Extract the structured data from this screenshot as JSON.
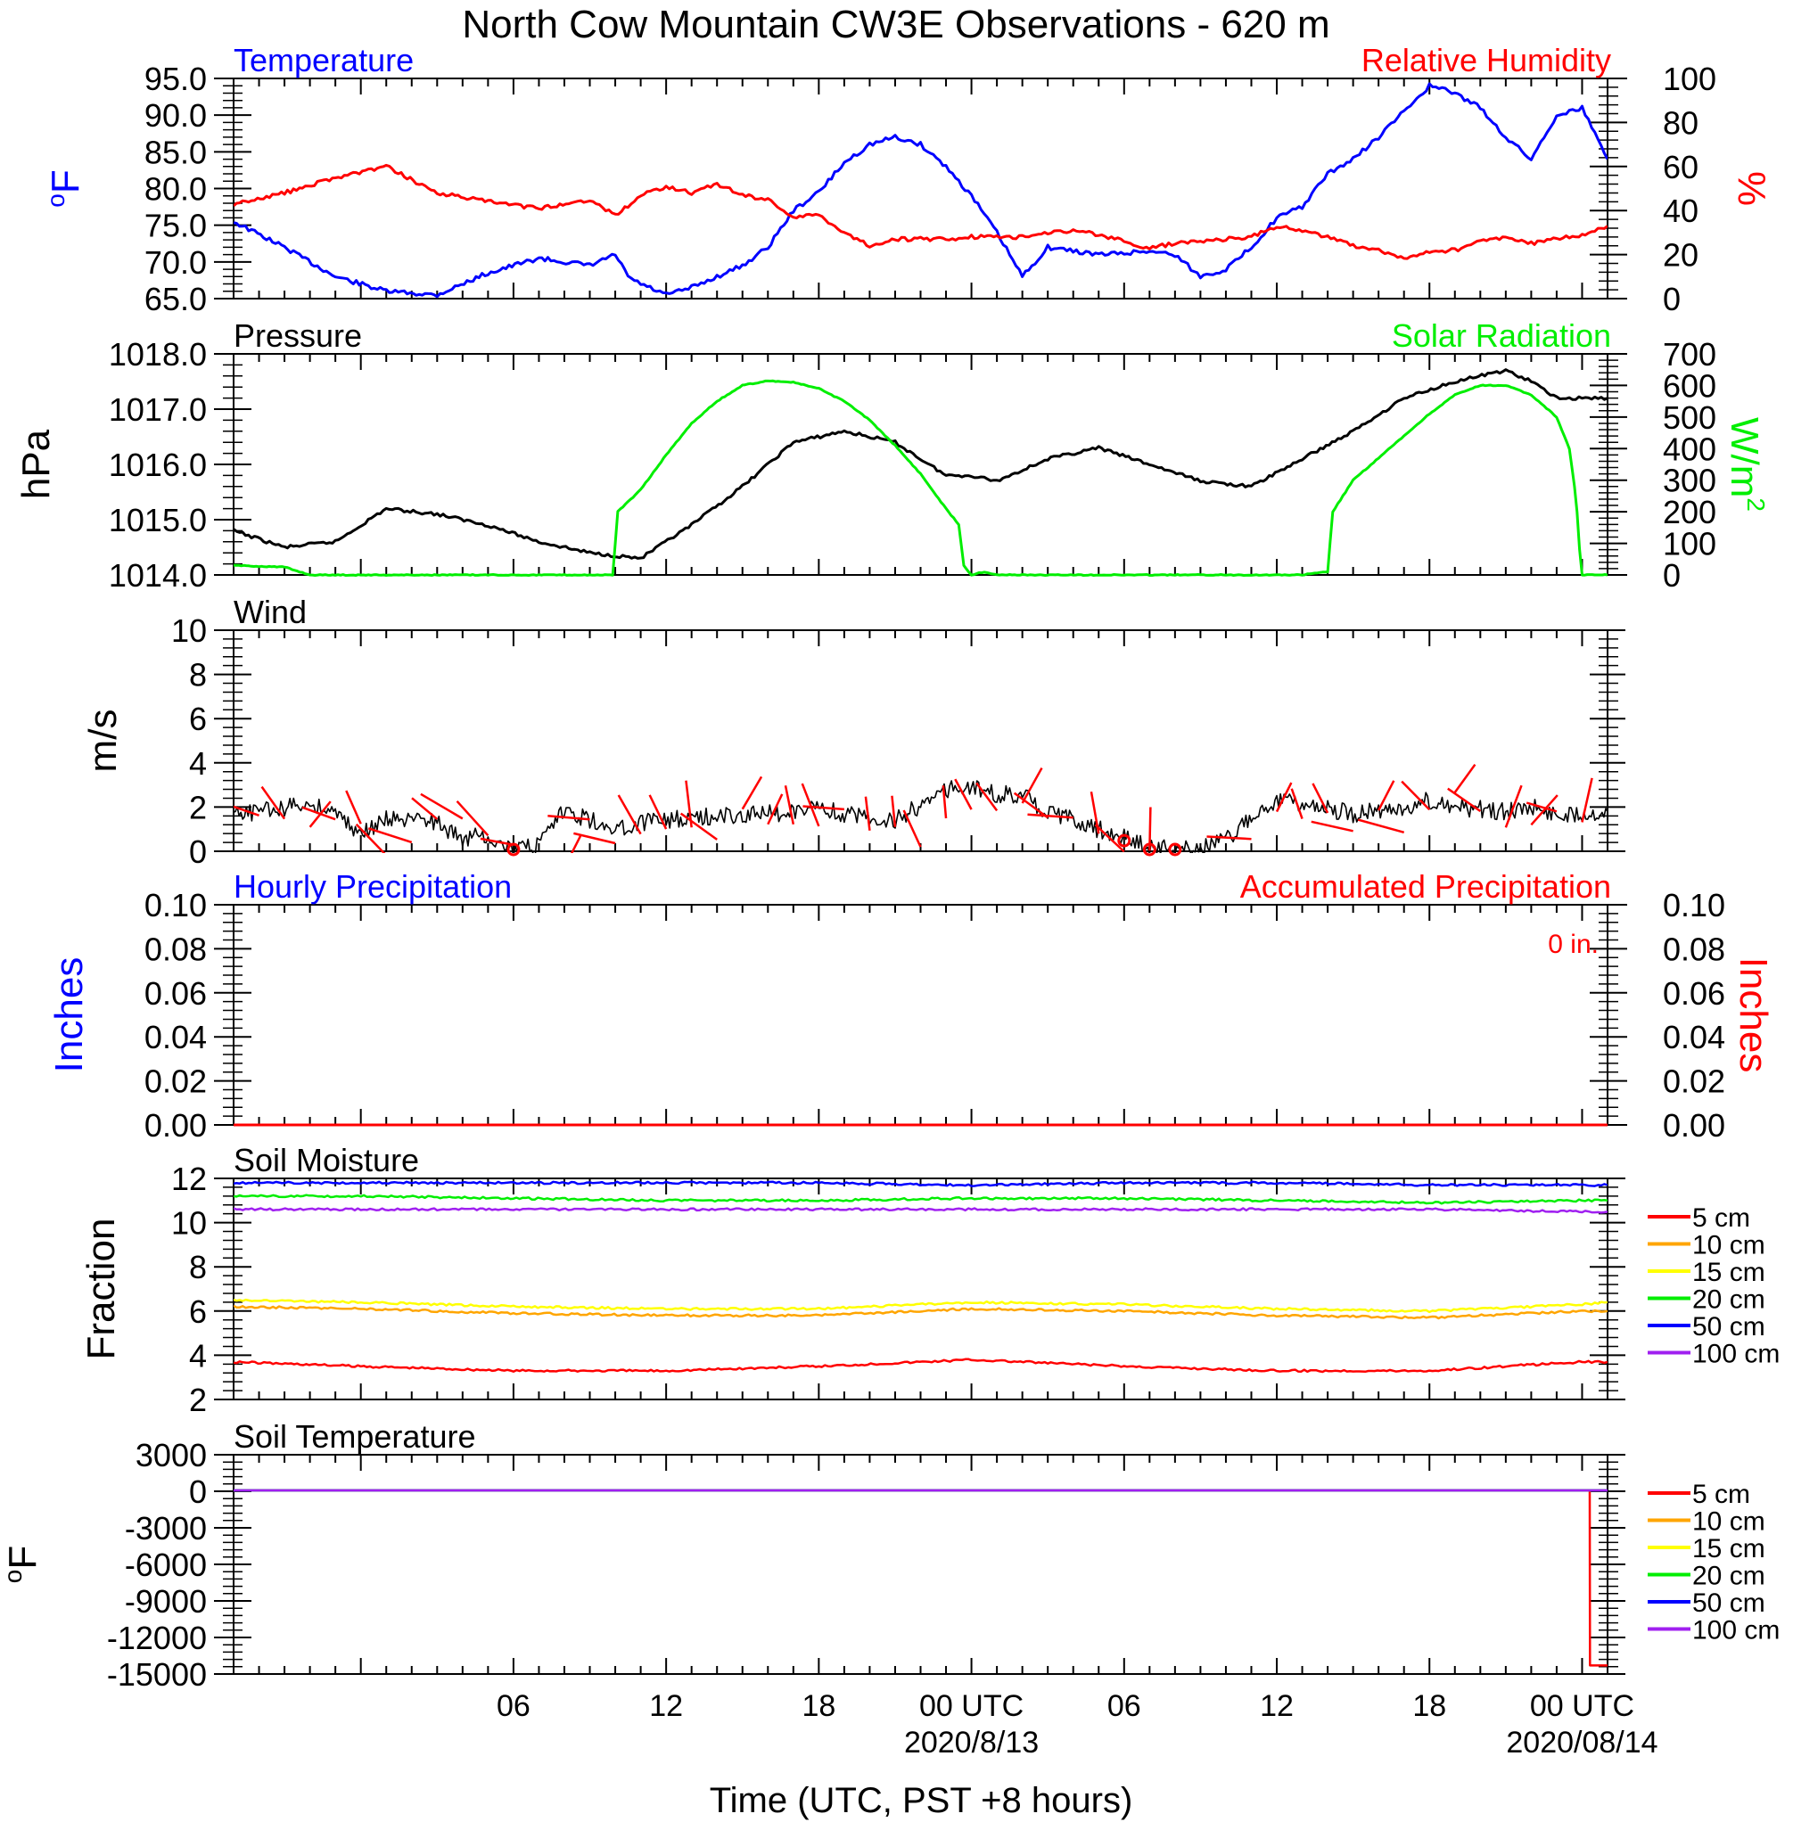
{
  "title": "North Cow Mountain CW3E Observations - 620 m",
  "xlabel": "Time (UTC, PST +8 hours)",
  "time_ticks": [
    {
      "h": 6,
      "label": "06",
      "date": ""
    },
    {
      "h": 12,
      "label": "12",
      "date": ""
    },
    {
      "h": 18,
      "label": "18",
      "date": ""
    },
    {
      "h": 24,
      "label": "00 UTC",
      "date": "2020/8/13"
    },
    {
      "h": 30,
      "label": "06",
      "date": ""
    },
    {
      "h": 36,
      "label": "12",
      "date": ""
    },
    {
      "h": 42,
      "label": "18",
      "date": ""
    },
    {
      "h": 48,
      "label": "00 UTC",
      "date": "2020/08/14"
    }
  ],
  "colors": {
    "blue": "#0000ff",
    "red": "#ff0000",
    "green": "#00ee00",
    "black": "#000000",
    "orange": "#ffa500",
    "yellow": "#ffff00",
    "purple": "#a020f0"
  },
  "panels": {
    "temp_rh": {
      "left_title": "Temperature",
      "right_title": "Relative Humidity",
      "left_unit": "oF",
      "right_unit": "%",
      "left_ticks": [
        "95.0",
        "90.0",
        "85.0",
        "80.0",
        "75.0",
        "70.0",
        "65.0"
      ],
      "right_ticks": [
        "100",
        "80",
        "60",
        "40",
        "20",
        "0"
      ]
    },
    "pressure_solar": {
      "left_title": "Pressure",
      "right_title": "Solar Radiation",
      "left_unit": "hPa",
      "right_unit": "W/m2",
      "left_ticks": [
        "1018.0",
        "1017.0",
        "1016.0",
        "1015.0",
        "1014.0"
      ],
      "right_ticks": [
        "700",
        "600",
        "500",
        "400",
        "300",
        "200",
        "100",
        "0"
      ]
    },
    "wind": {
      "left_title": "Wind",
      "left_unit": "m/s",
      "left_ticks": [
        "10",
        "8",
        "6",
        "4",
        "2",
        "0"
      ]
    },
    "precip": {
      "left_title": "Hourly Precipitation",
      "right_title": "Accumulated Precipitation",
      "left_unit": "Inches",
      "right_unit": "Inches",
      "total_label": "0 in.",
      "left_ticks": [
        "0.10",
        "0.08",
        "0.06",
        "0.04",
        "0.02",
        "0.00"
      ],
      "right_ticks": [
        "0.10",
        "0.08",
        "0.06",
        "0.04",
        "0.02",
        "0.00"
      ]
    },
    "soil_moisture": {
      "left_title": "Soil Moisture",
      "left_unit": "Fraction",
      "left_ticks": [
        "12",
        "10",
        "8",
        "6",
        "4",
        "2"
      ],
      "legend": [
        "5 cm",
        "10 cm",
        "15 cm",
        "20 cm",
        "50 cm",
        "100 cm"
      ]
    },
    "soil_temp": {
      "left_title": "Soil Temperature",
      "left_unit": "oF",
      "left_ticks": [
        "3000",
        "0",
        "-3000",
        "-6000",
        "-9000",
        "-12000",
        "-15000"
      ],
      "legend": [
        "5 cm",
        "10 cm",
        "15 cm",
        "20 cm",
        "50 cm",
        "100 cm"
      ]
    }
  },
  "chart_data": [
    {
      "type": "line",
      "title": "Temperature / Relative Humidity",
      "x_units": "hours since 2020-08-12 00 UTC",
      "xlim": [
        -5,
        49
      ],
      "series": [
        {
          "name": "Temperature",
          "axis": "left",
          "unit": "°F",
          "ylim": [
            65,
            95
          ],
          "color": "#0000ff",
          "x": [
            -5,
            -3,
            -1,
            1,
            3,
            5,
            7,
            9,
            10,
            10.5,
            11,
            12,
            13,
            14,
            15,
            16,
            17,
            18,
            19,
            20,
            21,
            22,
            23,
            24,
            25,
            26,
            27,
            28,
            29,
            30,
            31,
            32,
            33,
            34,
            35,
            36,
            37,
            38,
            39,
            40,
            41,
            42,
            43,
            44,
            45,
            46,
            47,
            48,
            49
          ],
          "y": [
            75.5,
            72,
            68,
            66,
            65.5,
            68.5,
            70.5,
            69.5,
            71,
            68,
            67,
            65.5,
            66.5,
            68,
            69.5,
            72,
            77,
            79.5,
            83.5,
            86,
            87,
            86,
            83,
            79,
            74,
            68,
            72,
            71.5,
            71,
            71.2,
            71.5,
            71,
            68,
            69,
            72,
            76,
            77.5,
            82,
            84,
            87,
            90.5,
            94,
            93,
            91,
            87,
            84,
            90,
            91,
            84
          ]
        },
        {
          "name": "Relative Humidity",
          "axis": "right",
          "unit": "%",
          "ylim": [
            0,
            100
          ],
          "color": "#ff0000",
          "x": [
            -5,
            -3,
            -1,
            1,
            3,
            5,
            7,
            9,
            10,
            10.5,
            11,
            12,
            13,
            14,
            15,
            16,
            17,
            18,
            19,
            20,
            21,
            22,
            23,
            24,
            25,
            26,
            27,
            28,
            29,
            30,
            31,
            32,
            33,
            34,
            35,
            36,
            37,
            38,
            39,
            40,
            41,
            42,
            43,
            44,
            45,
            46,
            47,
            48,
            49
          ],
          "y": [
            43,
            48,
            55,
            60,
            48,
            44,
            41,
            45,
            38,
            42,
            47,
            51,
            48,
            52,
            47,
            45,
            37,
            38,
            30,
            24,
            27,
            27,
            27,
            28,
            28,
            28,
            30,
            31,
            29,
            26,
            23,
            25,
            26,
            27,
            28,
            33,
            31,
            28,
            24,
            22,
            18,
            21,
            22,
            26,
            28,
            25,
            27,
            29,
            33
          ]
        }
      ]
    },
    {
      "type": "line",
      "title": "Pressure / Solar Radiation",
      "x_units": "hours since 2020-08-12 00 UTC",
      "xlim": [
        -5,
        49
      ],
      "series": [
        {
          "name": "Pressure",
          "axis": "left",
          "unit": "hPa",
          "ylim": [
            1014,
            1018
          ],
          "color": "#000000",
          "x": [
            -5,
            -3,
            -1,
            1,
            3,
            5,
            7,
            9,
            11,
            13,
            15,
            17,
            19,
            21,
            23,
            24,
            25,
            27,
            29,
            31,
            33,
            35,
            37,
            39,
            41,
            43,
            45,
            46,
            47,
            48,
            49
          ],
          "y": [
            1014.8,
            1014.5,
            1014.6,
            1015.2,
            1015.1,
            1014.9,
            1014.6,
            1014.4,
            1014.3,
            1014.9,
            1015.6,
            1016.4,
            1016.6,
            1016.4,
            1015.8,
            1015.8,
            1015.7,
            1016.1,
            1016.3,
            1016.0,
            1015.7,
            1015.6,
            1016.1,
            1016.6,
            1017.2,
            1017.5,
            1017.7,
            1017.5,
            1017.2,
            1017.2,
            1017.2
          ]
        },
        {
          "name": "Solar Radiation",
          "axis": "right",
          "unit": "W/m2",
          "ylim": [
            0,
            700
          ],
          "color": "#00ee00",
          "x": [
            -5,
            -3,
            -2,
            8,
            9.9,
            10.1,
            11,
            12,
            13,
            14,
            15,
            16,
            17,
            18,
            19,
            20,
            21,
            22,
            23,
            23.5,
            23.7,
            24,
            24.5,
            25,
            26,
            37,
            38,
            38.2,
            39,
            40,
            41,
            42,
            43,
            44,
            45,
            46,
            47,
            47.5,
            47.7,
            47.8,
            47.9,
            48,
            48.4,
            49
          ],
          "y": [
            30,
            25,
            0,
            0,
            0,
            200,
            270,
            380,
            480,
            550,
            600,
            615,
            610,
            590,
            550,
            490,
            410,
            320,
            210,
            160,
            30,
            0,
            10,
            0,
            0,
            0,
            10,
            200,
            300,
            370,
            440,
            510,
            570,
            600,
            600,
            570,
            500,
            400,
            280,
            200,
            80,
            0,
            0,
            0
          ]
        }
      ]
    },
    {
      "type": "line",
      "title": "Wind",
      "x_units": "hours since 2020-08-12 00 UTC",
      "xlim": [
        -5,
        49
      ],
      "series": [
        {
          "name": "Wind",
          "axis": "left",
          "unit": "m/s",
          "ylim": [
            0,
            10
          ],
          "color": "#000000",
          "x": [
            -5,
            -4,
            -3,
            -2,
            -1,
            0,
            1,
            2,
            3,
            4,
            5,
            6,
            7,
            8,
            9,
            10,
            11,
            12,
            13,
            14,
            15,
            16,
            17,
            18,
            19,
            20,
            21,
            22,
            23,
            24,
            25,
            26,
            27,
            28,
            29,
            30,
            31,
            32,
            33,
            34,
            35,
            36,
            37,
            38,
            39,
            40,
            41,
            42,
            43,
            44,
            45,
            46,
            47,
            48,
            49
          ],
          "y": [
            1.6,
            1.8,
            2.0,
            2.2,
            1.8,
            0.8,
            1.5,
            1.4,
            1.3,
            0.5,
            0.8,
            0.1,
            0.3,
            1.9,
            1.4,
            1.0,
            1.3,
            1.4,
            1.5,
            1.6,
            1.6,
            1.7,
            1.8,
            1.9,
            1.7,
            1.5,
            1.4,
            2.1,
            2.8,
            3.0,
            2.6,
            2.5,
            1.8,
            1.4,
            1.0,
            0.6,
            0.2,
            0.1,
            0.1,
            0.5,
            1.6,
            2.3,
            2.2,
            1.9,
            1.7,
            1.8,
            2.0,
            2.3,
            2.0,
            1.9,
            1.8,
            2.0,
            1.6,
            1.7,
            1.8
          ]
        },
        {
          "name": "calm",
          "axis": "left",
          "unit": "m/s",
          "color": "#ff0000",
          "x": [
            6,
            30,
            31,
            32
          ],
          "y": [
            0.0,
            0.4,
            0.0,
            0.0
          ]
        }
      ]
    },
    {
      "type": "line",
      "title": "Hourly / Accumulated Precipitation",
      "x_units": "hours since 2020-08-12 00 UTC",
      "xlim": [
        -5,
        49
      ],
      "series": [
        {
          "name": "Hourly Precipitation",
          "axis": "left",
          "unit": "in",
          "ylim": [
            0,
            0.1
          ],
          "color": "#0000ff",
          "x": [
            -5,
            49
          ],
          "y": [
            0,
            0
          ]
        },
        {
          "name": "Accumulated Precipitation",
          "axis": "right",
          "unit": "in",
          "ylim": [
            0,
            0.1
          ],
          "color": "#ff0000",
          "x": [
            -5,
            49
          ],
          "y": [
            0,
            0
          ]
        }
      ]
    },
    {
      "type": "line",
      "title": "Soil Moisture",
      "x_units": "hours since 2020-08-12 00 UTC",
      "xlim": [
        -5,
        49
      ],
      "ylim": [
        2,
        12
      ],
      "series": [
        {
          "name": "5 cm",
          "color": "#ff0000",
          "x": [
            -5,
            0,
            6,
            12,
            18,
            24,
            30,
            36,
            42,
            48,
            49
          ],
          "y": [
            3.7,
            3.5,
            3.3,
            3.3,
            3.5,
            3.8,
            3.5,
            3.3,
            3.3,
            3.7,
            3.7
          ]
        },
        {
          "name": "10 cm",
          "color": "#ffa500",
          "x": [
            -5,
            0,
            6,
            12,
            18,
            24,
            30,
            36,
            42,
            48,
            49
          ],
          "y": [
            6.2,
            6.1,
            5.9,
            5.8,
            5.8,
            6.1,
            6.0,
            5.8,
            5.7,
            6.0,
            6.0
          ]
        },
        {
          "name": "15 cm",
          "color": "#ffff00",
          "x": [
            -5,
            0,
            6,
            12,
            18,
            24,
            30,
            36,
            42,
            48,
            49
          ],
          "y": [
            6.5,
            6.4,
            6.2,
            6.1,
            6.1,
            6.4,
            6.3,
            6.1,
            6.0,
            6.3,
            6.4
          ]
        },
        {
          "name": "20 cm",
          "color": "#00ee00",
          "x": [
            -5,
            0,
            6,
            12,
            18,
            24,
            30,
            36,
            42,
            48,
            49
          ],
          "y": [
            11.2,
            11.2,
            11.1,
            11.0,
            11.0,
            11.1,
            11.1,
            11.0,
            10.9,
            11.0,
            11.0
          ]
        },
        {
          "name": "50 cm",
          "color": "#0000ff",
          "x": [
            -5,
            0,
            6,
            12,
            18,
            24,
            30,
            36,
            42,
            48,
            49
          ],
          "y": [
            11.8,
            11.8,
            11.8,
            11.8,
            11.8,
            11.7,
            11.8,
            11.8,
            11.7,
            11.7,
            11.7
          ]
        },
        {
          "name": "100 cm",
          "color": "#a020f0",
          "x": [
            -5,
            0,
            6,
            12,
            18,
            24,
            30,
            36,
            42,
            48,
            49
          ],
          "y": [
            10.6,
            10.6,
            10.6,
            10.6,
            10.6,
            10.6,
            10.6,
            10.6,
            10.6,
            10.5,
            10.5
          ]
        }
      ]
    },
    {
      "type": "line",
      "title": "Soil Temperature",
      "x_units": "hours since 2020-08-12 00 UTC",
      "xlim": [
        -5,
        49
      ],
      "ylim": [
        -15000,
        3000
      ],
      "series": [
        {
          "name": "5 cm",
          "color": "#ff0000",
          "x": [
            -5,
            48.3,
            48.31,
            49
          ],
          "y": [
            75,
            75,
            -14300,
            -14300
          ]
        },
        {
          "name": "10 cm",
          "color": "#ffa500",
          "x": [
            -5,
            49
          ],
          "y": [
            74,
            74
          ]
        },
        {
          "name": "15 cm",
          "color": "#ffff00",
          "x": [
            -5,
            49
          ],
          "y": [
            73,
            73
          ]
        },
        {
          "name": "20 cm",
          "color": "#00ee00",
          "x": [
            -5,
            49
          ],
          "y": [
            72,
            72
          ]
        },
        {
          "name": "50 cm",
          "color": "#0000ff",
          "x": [
            -5,
            49
          ],
          "y": [
            71,
            71
          ]
        },
        {
          "name": "100 cm",
          "color": "#a020f0",
          "x": [
            -5,
            49
          ],
          "y": [
            70,
            70
          ]
        }
      ]
    }
  ]
}
